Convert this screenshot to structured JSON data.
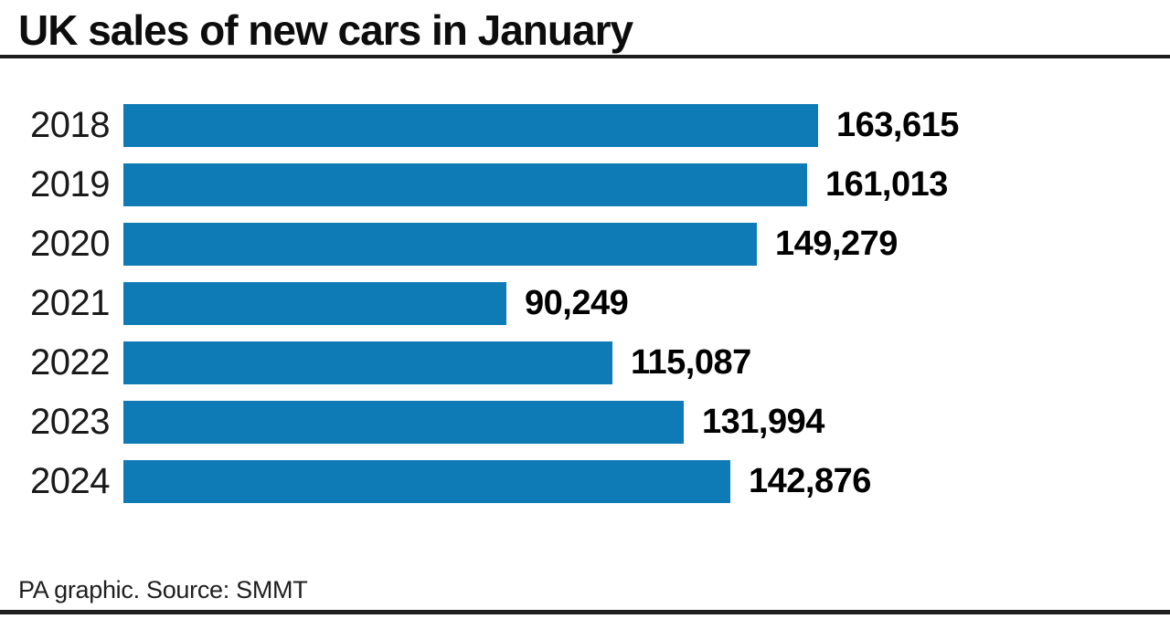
{
  "title": "UK sales of new cars in January",
  "footer": {
    "credit": "PA graphic. Source: SMMT"
  },
  "colors": {
    "bar": "#0e7ab6",
    "title_text": "#0d0d0d",
    "rule": "#1c1c1c"
  },
  "chart_data": {
    "type": "bar",
    "orientation": "horizontal",
    "title": "UK sales of new cars in January",
    "xlabel": "",
    "ylabel": "",
    "categories": [
      "2018",
      "2019",
      "2020",
      "2021",
      "2022",
      "2023",
      "2024"
    ],
    "values": [
      163615,
      161013,
      149279,
      90249,
      115087,
      131994,
      142876
    ],
    "value_labels": [
      "163,615",
      "161,013",
      "149,279",
      "90,249",
      "115,087",
      "131,994",
      "142,876"
    ],
    "xlim": [
      0,
      163615
    ],
    "grid": false,
    "legend": false,
    "value_label_position": "end-of-bar",
    "source": "PA graphic. Source: SMMT"
  }
}
